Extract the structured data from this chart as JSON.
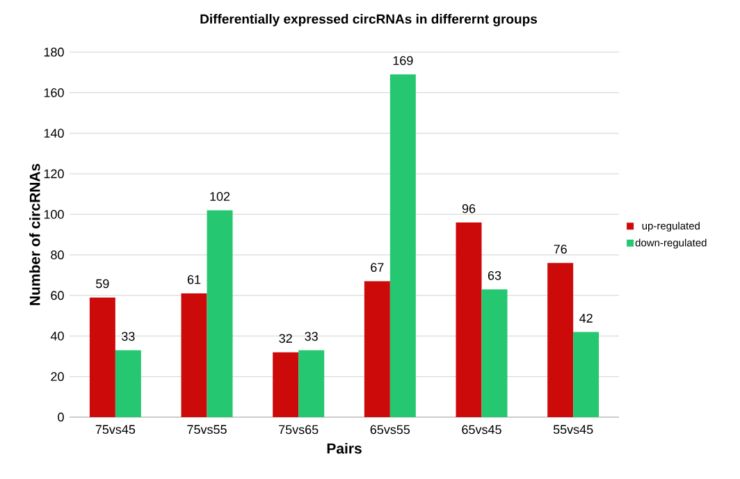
{
  "chart_data": {
    "type": "bar",
    "title": "Differentially expressed circRNAs in differernt groups",
    "xlabel": "Pairs",
    "ylabel": "Number of circRNAs",
    "categories": [
      "75vs45",
      "75vs55",
      "75vs65",
      "65vs55",
      "65vs45",
      "55vs45"
    ],
    "series": [
      {
        "name": "up-regulated",
        "color": "#cc0a0a",
        "values": [
          59,
          61,
          32,
          67,
          96,
          76
        ]
      },
      {
        "name": "down-regulated",
        "color": "#25c870",
        "values": [
          33,
          102,
          33,
          169,
          63,
          42
        ]
      }
    ],
    "ylim": [
      0,
      180
    ],
    "yticks": [
      0,
      20,
      40,
      60,
      80,
      100,
      120,
      140,
      160,
      180
    ],
    "grid": "y",
    "legend": "right",
    "data_labels": true
  }
}
